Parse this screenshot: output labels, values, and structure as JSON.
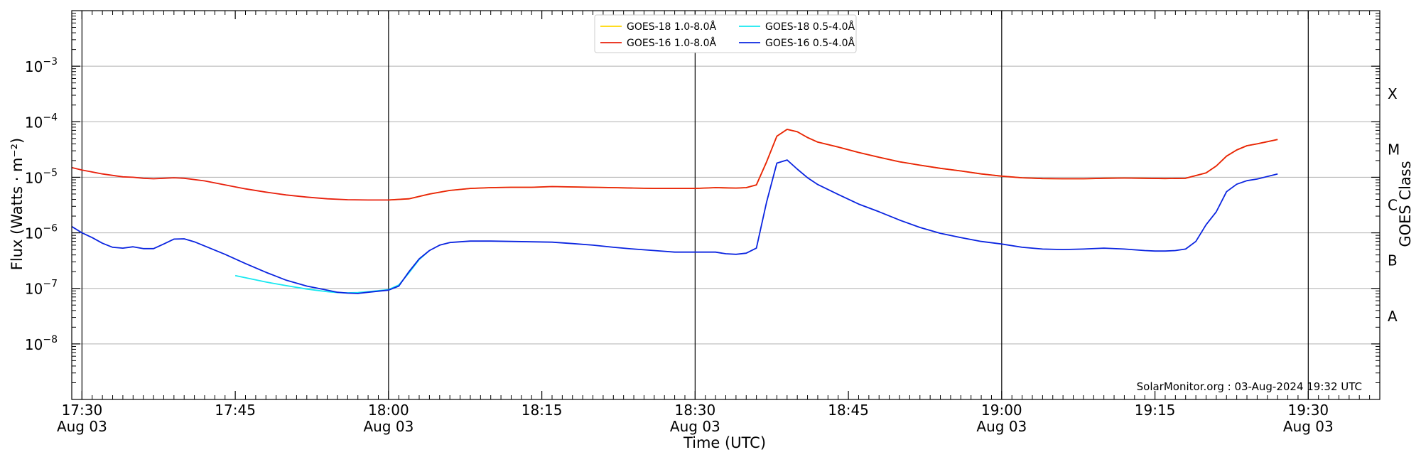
{
  "chart_data": {
    "type": "line",
    "xlabel": "Time (UTC)",
    "ylabel": "Flux (Watts · m⁻²)",
    "ylabel_right": "GOES Class",
    "annotation": "SolarMonitor.org : 03-Aug-2024 19:32 UTC",
    "yscale": "log",
    "xlim": [
      "17:29",
      "19:37"
    ],
    "ylim": [
      1e-09,
      0.01
    ],
    "grid": "horizontal",
    "legend_position": "top-center",
    "x_ticks": [
      {
        "time": "17:30",
        "label": "17:30",
        "date": "Aug 03"
      },
      {
        "time": "17:45",
        "label": "17:45",
        "date": ""
      },
      {
        "time": "18:00",
        "label": "18:00",
        "date": "Aug 03"
      },
      {
        "time": "18:15",
        "label": "18:15",
        "date": ""
      },
      {
        "time": "18:30",
        "label": "18:30",
        "date": "Aug 03"
      },
      {
        "time": "18:45",
        "label": "18:45",
        "date": ""
      },
      {
        "time": "19:00",
        "label": "19:00",
        "date": "Aug 03"
      },
      {
        "time": "19:15",
        "label": "19:15",
        "date": ""
      },
      {
        "time": "19:30",
        "label": "19:30",
        "date": "Aug 03"
      }
    ],
    "y_ticks": [
      {
        "value": 1e-08,
        "base": "10",
        "exp": "−8"
      },
      {
        "value": 1e-07,
        "base": "10",
        "exp": "−7"
      },
      {
        "value": 1e-06,
        "base": "10",
        "exp": "−6"
      },
      {
        "value": 1e-05,
        "base": "10",
        "exp": "−5"
      },
      {
        "value": 0.0001,
        "base": "10",
        "exp": "−4"
      },
      {
        "value": 0.001,
        "base": "10",
        "exp": "−3"
      }
    ],
    "class_labels": [
      {
        "label": "A",
        "value": 3.16e-08
      },
      {
        "label": "B",
        "value": 3.16e-07
      },
      {
        "label": "C",
        "value": 3.16e-06
      },
      {
        "label": "M",
        "value": 3.16e-05
      },
      {
        "label": "X",
        "value": 0.000316
      }
    ],
    "vlines": [
      "17:30",
      "18:00",
      "18:30",
      "19:00",
      "19:30"
    ],
    "series": [
      {
        "name": "GOES-18 1.0-8.0Å",
        "color": "#ffd700",
        "x": [
          "18:00",
          "18:02",
          "18:04",
          "18:06",
          "18:08",
          "18:10",
          "18:12",
          "18:14",
          "18:16",
          "18:18",
          "18:20",
          "18:22",
          "18:24",
          "18:26",
          "18:28",
          "18:30",
          "18:32",
          "18:34",
          "18:35",
          "18:36",
          "18:37",
          "18:38",
          "18:39",
          "18:40",
          "18:41",
          "18:42",
          "18:44",
          "18:46",
          "18:48",
          "18:50",
          "18:52",
          "18:54",
          "18:56",
          "18:58",
          "19:00",
          "19:02",
          "19:04",
          "19:06",
          "19:08",
          "19:10",
          "19:12",
          "19:14",
          "19:16",
          "19:18",
          "19:20",
          "19:21",
          "19:22",
          "19:23",
          "19:24",
          "19:25",
          "19:27"
        ],
        "values": [
          3.9e-06,
          4.1e-06,
          5e-06,
          5.8e-06,
          6.3e-06,
          6.5e-06,
          6.6e-06,
          6.6e-06,
          6.8e-06,
          6.7e-06,
          6.6e-06,
          6.5e-06,
          6.4e-06,
          6.3e-06,
          6.3e-06,
          6.3e-06,
          6.5e-06,
          6.4e-06,
          6.5e-06,
          7.3e-06,
          1.9e-05,
          5.5e-05,
          7.3e-05,
          6.6e-05,
          5.2e-05,
          4.3e-05,
          3.5e-05,
          2.8e-05,
          2.3e-05,
          1.9e-05,
          1.65e-05,
          1.45e-05,
          1.3e-05,
          1.15e-05,
          1.05e-05,
          9.8e-06,
          9.5e-06,
          9.4e-06,
          9.4e-06,
          9.6e-06,
          9.7e-06,
          9.6e-06,
          9.5e-06,
          9.6e-06,
          1.2e-05,
          1.6e-05,
          2.4e-05,
          3.1e-05,
          3.7e-05,
          4e-05,
          4.8e-05
        ]
      },
      {
        "name": "GOES-16 1.0-8.0Å",
        "color": "#e8200c",
        "x": [
          "17:29",
          "17:30",
          "17:32",
          "17:34",
          "17:35",
          "17:36",
          "17:37",
          "17:38",
          "17:39",
          "17:40",
          "17:42",
          "17:44",
          "17:46",
          "17:48",
          "17:50",
          "17:52",
          "17:54",
          "17:56",
          "17:58",
          "18:00",
          "18:02",
          "18:04",
          "18:06",
          "18:08",
          "18:10",
          "18:12",
          "18:14",
          "18:16",
          "18:18",
          "18:20",
          "18:22",
          "18:24",
          "18:26",
          "18:28",
          "18:30",
          "18:32",
          "18:34",
          "18:35",
          "18:36",
          "18:37",
          "18:38",
          "18:39",
          "18:40",
          "18:41",
          "18:42",
          "18:44",
          "18:46",
          "18:48",
          "18:50",
          "18:52",
          "18:54",
          "18:56",
          "18:58",
          "19:00",
          "19:02",
          "19:04",
          "19:06",
          "19:08",
          "19:10",
          "19:12",
          "19:14",
          "19:16",
          "19:18",
          "19:20",
          "19:21",
          "19:22",
          "19:23",
          "19:24",
          "19:25",
          "19:27"
        ],
        "values": [
          1.5e-05,
          1.35e-05,
          1.15e-05,
          1.02e-05,
          1e-05,
          9.6e-06,
          9.4e-06,
          9.6e-06,
          9.8e-06,
          9.6e-06,
          8.6e-06,
          7.3e-06,
          6.2e-06,
          5.4e-06,
          4.8e-06,
          4.4e-06,
          4.1e-06,
          3.95e-06,
          3.9e-06,
          3.9e-06,
          4.1e-06,
          5e-06,
          5.8e-06,
          6.3e-06,
          6.5e-06,
          6.6e-06,
          6.6e-06,
          6.8e-06,
          6.7e-06,
          6.6e-06,
          6.5e-06,
          6.4e-06,
          6.3e-06,
          6.3e-06,
          6.3e-06,
          6.5e-06,
          6.4e-06,
          6.5e-06,
          7.3e-06,
          1.9e-05,
          5.5e-05,
          7.3e-05,
          6.6e-05,
          5.2e-05,
          4.3e-05,
          3.5e-05,
          2.8e-05,
          2.3e-05,
          1.9e-05,
          1.65e-05,
          1.45e-05,
          1.3e-05,
          1.15e-05,
          1.05e-05,
          9.8e-06,
          9.5e-06,
          9.4e-06,
          9.4e-06,
          9.6e-06,
          9.7e-06,
          9.6e-06,
          9.5e-06,
          9.6e-06,
          1.2e-05,
          1.6e-05,
          2.4e-05,
          3.1e-05,
          3.7e-05,
          4e-05,
          4.8e-05
        ]
      },
      {
        "name": "GOES-18 0.5-4.0Å",
        "color": "#17e8f0",
        "x": [
          "17:45",
          "17:48",
          "17:50",
          "17:52",
          "17:54",
          "17:55",
          "17:56",
          "17:57",
          "17:58",
          "18:00",
          "18:01",
          "18:02",
          "18:03",
          "18:04"
        ],
        "values": [
          1.7e-07,
          1.3e-07,
          1.12e-07,
          9.7e-08,
          8.7e-08,
          8.4e-08,
          8.3e-08,
          8.4e-08,
          8.7e-08,
          9.5e-08,
          1.15e-07,
          1.9e-07,
          3.3e-07,
          4.8e-07
        ]
      },
      {
        "name": "GOES-16 0.5-4.0Å",
        "color": "#0a24e0",
        "x": [
          "17:29",
          "17:30",
          "17:31",
          "17:32",
          "17:33",
          "17:34",
          "17:35",
          "17:36",
          "17:37",
          "17:38",
          "17:39",
          "17:40",
          "17:41",
          "17:42",
          "17:44",
          "17:46",
          "17:48",
          "17:50",
          "17:52",
          "17:54",
          "17:55",
          "17:56",
          "17:57",
          "17:58",
          "18:00",
          "18:01",
          "18:02",
          "18:03",
          "18:04",
          "18:05",
          "18:06",
          "18:08",
          "18:10",
          "18:12",
          "18:14",
          "18:16",
          "18:18",
          "18:20",
          "18:22",
          "18:24",
          "18:26",
          "18:28",
          "18:30",
          "18:32",
          "18:33",
          "18:34",
          "18:35",
          "18:36",
          "18:37",
          "18:38",
          "18:39",
          "18:40",
          "18:41",
          "18:42",
          "18:44",
          "18:46",
          "18:48",
          "18:50",
          "18:52",
          "18:54",
          "18:56",
          "18:58",
          "19:00",
          "19:02",
          "19:04",
          "19:06",
          "19:08",
          "19:10",
          "19:12",
          "19:14",
          "19:15",
          "19:16",
          "19:17",
          "19:18",
          "19:19",
          "19:20",
          "19:21",
          "19:22",
          "19:23",
          "19:24",
          "19:25",
          "19:27"
        ],
        "values": [
          1.3e-06,
          1e-06,
          8.2e-07,
          6.5e-07,
          5.5e-07,
          5.3e-07,
          5.6e-07,
          5.2e-07,
          5.2e-07,
          6.3e-07,
          7.7e-07,
          7.8e-07,
          6.9e-07,
          5.8e-07,
          4.1e-07,
          2.8e-07,
          1.95e-07,
          1.4e-07,
          1.1e-07,
          9.3e-08,
          8.5e-08,
          8.2e-08,
          8.1e-08,
          8.5e-08,
          9.3e-08,
          1.1e-07,
          2e-07,
          3.4e-07,
          4.8e-07,
          6e-07,
          6.7e-07,
          7.1e-07,
          7.1e-07,
          7e-07,
          6.9e-07,
          6.8e-07,
          6.4e-07,
          6e-07,
          5.5e-07,
          5.1e-07,
          4.8e-07,
          4.5e-07,
          4.5e-07,
          4.5e-07,
          4.2e-07,
          4.1e-07,
          4.3e-07,
          5.3e-07,
          3.6e-06,
          1.8e-05,
          2.05e-05,
          1.4e-05,
          9.8e-06,
          7.4e-06,
          4.9e-06,
          3.3e-06,
          2.4e-06,
          1.7e-06,
          1.25e-06,
          9.8e-07,
          8.2e-07,
          7e-07,
          6.3e-07,
          5.5e-07,
          5.1e-07,
          5e-07,
          5.1e-07,
          5.3e-07,
          5.1e-07,
          4.8e-07,
          4.7e-07,
          4.7e-07,
          4.8e-07,
          5.1e-07,
          7e-07,
          1.4e-06,
          2.4e-06,
          5.5e-06,
          7.5e-06,
          8.7e-06,
          9.3e-06,
          1.15e-05
        ]
      }
    ]
  }
}
